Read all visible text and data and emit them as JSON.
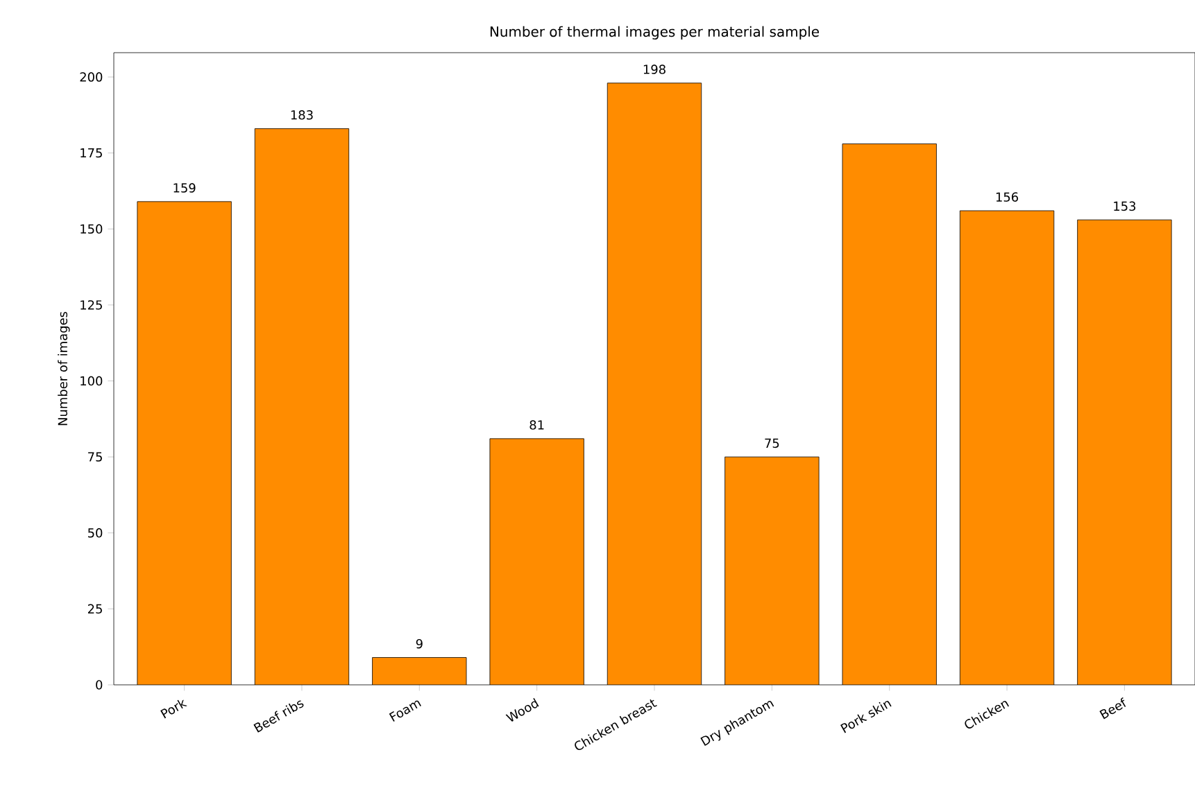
{
  "chart_data": {
    "type": "bar",
    "title": "Number of thermal images per material sample",
    "ylabel": "Number of images",
    "categories": [
      "Pork",
      "Beef ribs",
      "Foam",
      "Wood",
      "Chicken breast",
      "Dry phantom",
      "Pork skin",
      "Chicken",
      "Beef"
    ],
    "values": [
      159,
      183,
      9,
      81,
      198,
      75,
      178,
      156,
      153
    ],
    "value_labels": [
      "159",
      "183",
      "9",
      "81",
      "198",
      "75",
      null,
      "156",
      "153"
    ],
    "color": "#ff8c00",
    "ylim": [
      0,
      208
    ],
    "yticks": [
      0,
      25,
      50,
      75,
      100,
      125,
      150,
      175,
      200
    ],
    "grid": false
  }
}
